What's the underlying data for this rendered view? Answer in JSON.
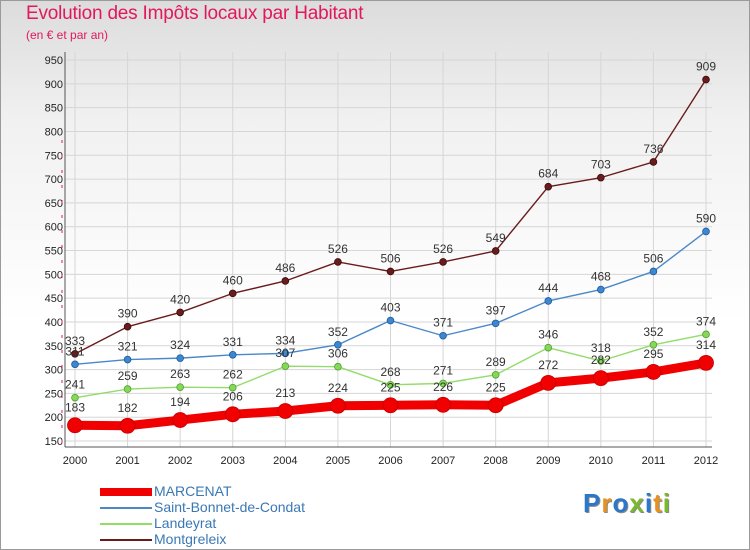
{
  "header": {
    "title": "Evolution des Impôts locaux par Habitant",
    "subtitle": "(en € et par an)"
  },
  "logo": {
    "text": "Proxiti",
    "letter_colors": [
      "#2b77c9",
      "#e8911e",
      "#2b77c9",
      "#7ab82e",
      "#2b77c9",
      "#e8911e",
      "#7ab82e"
    ]
  },
  "chart_data": {
    "type": "line",
    "title": "Evolution des Impôts locaux par Habitant",
    "subtitle": "(en € et par an)",
    "xlabel": "",
    "ylabel": "",
    "ylim": [
      150,
      950
    ],
    "yticks": [
      150,
      200,
      250,
      300,
      350,
      400,
      450,
      500,
      550,
      600,
      650,
      700,
      750,
      800,
      850,
      900,
      950
    ],
    "grid": true,
    "legend_position": "bottom-left",
    "x": [
      "2000",
      "2001",
      "2002",
      "2003",
      "2004",
      "2005",
      "2006",
      "2007",
      "2008",
      "2009",
      "2010",
      "2011",
      "2012"
    ],
    "series": [
      {
        "name": "MARCENAT",
        "color": "#f00000",
        "values": [
          183,
          182,
          194,
          206,
          213,
          224,
          225,
          226,
          225,
          272,
          282,
          295,
          314
        ]
      },
      {
        "name": "Saint-Bonnet-de-Condat",
        "color": "#4a88c8",
        "values": [
          311,
          321,
          324,
          331,
          334,
          352,
          403,
          371,
          397,
          444,
          468,
          506,
          590
        ]
      },
      {
        "name": "Landeyrat",
        "color": "#92dc6a",
        "values": [
          241,
          259,
          263,
          262,
          307,
          306,
          268,
          271,
          289,
          346,
          318,
          352,
          374
        ]
      },
      {
        "name": "Montgreleix",
        "color": "#6a1c1c",
        "values": [
          333,
          390,
          420,
          460,
          486,
          526,
          506,
          526,
          549,
          684,
          703,
          736,
          909
        ]
      }
    ]
  }
}
